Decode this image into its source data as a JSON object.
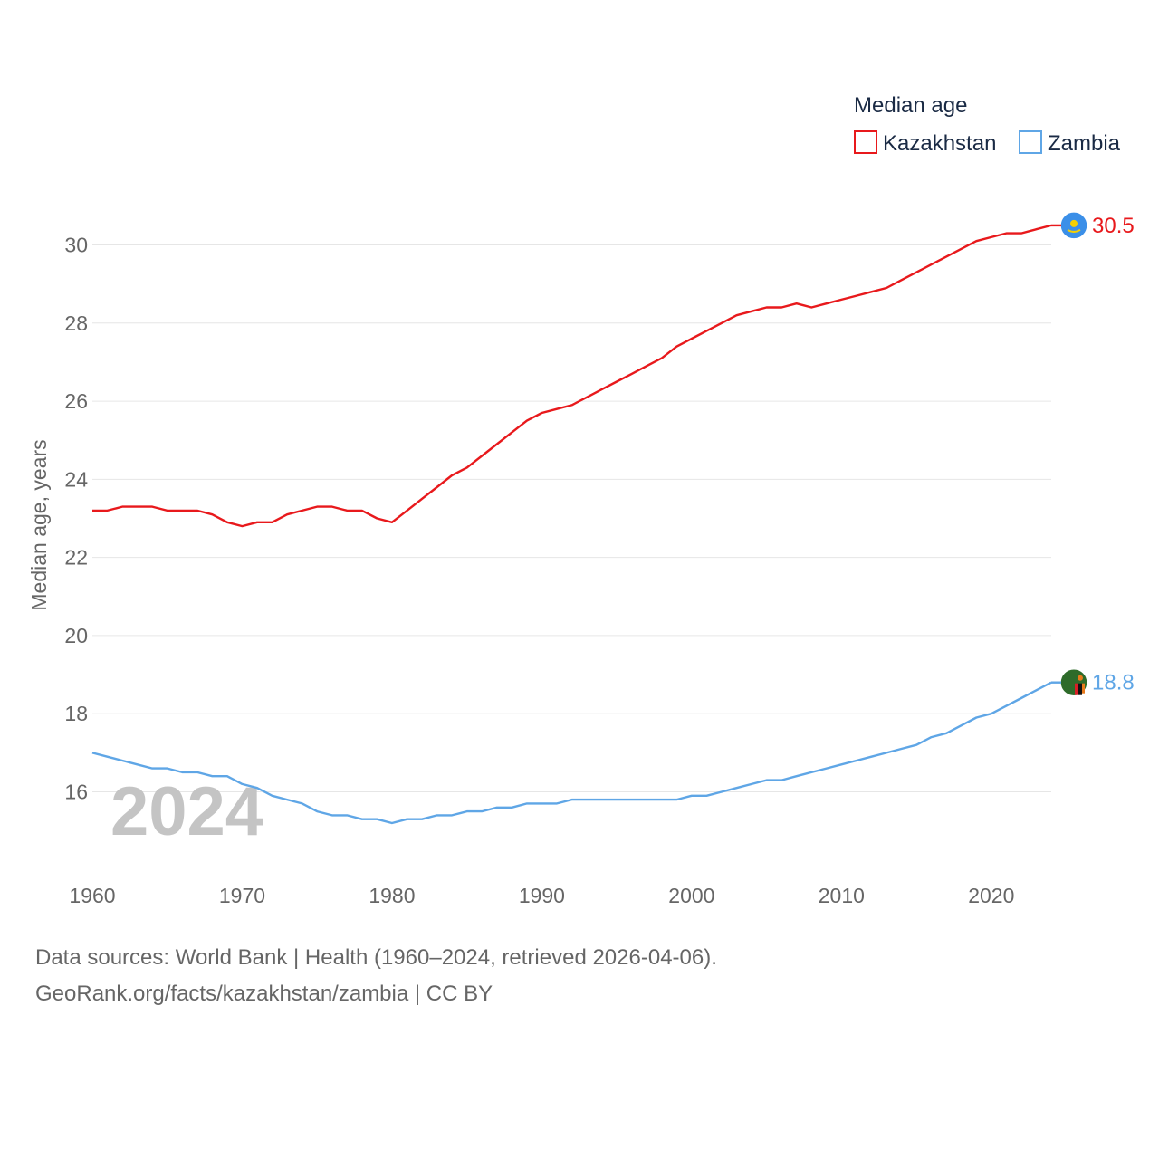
{
  "chart_data": {
    "type": "line",
    "title": "",
    "xlabel": "",
    "ylabel": "Median age, years",
    "xlim": [
      1960,
      2024
    ],
    "ylim": [
      14,
      31.5
    ],
    "yticks": [
      16,
      18,
      20,
      22,
      24,
      26,
      28,
      30
    ],
    "xticks": [
      1960,
      1970,
      1980,
      1990,
      2000,
      2010,
      2020
    ],
    "year_overlay": "2024",
    "legend": {
      "title": "Median age",
      "placement": "top-right"
    },
    "x": [
      1960,
      1961,
      1962,
      1963,
      1964,
      1965,
      1966,
      1967,
      1968,
      1969,
      1970,
      1971,
      1972,
      1973,
      1974,
      1975,
      1976,
      1977,
      1978,
      1979,
      1980,
      1981,
      1982,
      1983,
      1984,
      1985,
      1986,
      1987,
      1988,
      1989,
      1990,
      1991,
      1992,
      1993,
      1994,
      1995,
      1996,
      1997,
      1998,
      1999,
      2000,
      2001,
      2002,
      2003,
      2004,
      2005,
      2006,
      2007,
      2008,
      2009,
      2010,
      2011,
      2012,
      2013,
      2014,
      2015,
      2016,
      2017,
      2018,
      2019,
      2020,
      2021,
      2022,
      2023,
      2024
    ],
    "series": [
      {
        "name": "Kazakhstan",
        "color": "#e8191c",
        "end_label": "30.5",
        "flag_icon": "kazakhstan-flag-icon",
        "values": [
          23.2,
          23.2,
          23.3,
          23.3,
          23.3,
          23.2,
          23.2,
          23.2,
          23.1,
          22.9,
          22.8,
          22.9,
          22.9,
          23.1,
          23.2,
          23.3,
          23.3,
          23.2,
          23.2,
          23.0,
          22.9,
          23.2,
          23.5,
          23.8,
          24.1,
          24.3,
          24.6,
          24.9,
          25.2,
          25.5,
          25.7,
          25.8,
          25.9,
          26.1,
          26.3,
          26.5,
          26.7,
          26.9,
          27.1,
          27.4,
          27.6,
          27.8,
          28.0,
          28.2,
          28.3,
          28.4,
          28.4,
          28.5,
          28.4,
          28.5,
          28.6,
          28.7,
          28.8,
          28.9,
          29.1,
          29.3,
          29.5,
          29.7,
          29.9,
          30.1,
          30.2,
          30.3,
          30.3,
          30.4,
          30.5
        ]
      },
      {
        "name": "Zambia",
        "color": "#5fa6e6",
        "end_label": "18.8",
        "flag_icon": "zambia-flag-icon",
        "values": [
          17.0,
          16.9,
          16.8,
          16.7,
          16.6,
          16.6,
          16.5,
          16.5,
          16.4,
          16.4,
          16.2,
          16.1,
          15.9,
          15.8,
          15.7,
          15.5,
          15.4,
          15.4,
          15.3,
          15.3,
          15.2,
          15.3,
          15.3,
          15.4,
          15.4,
          15.5,
          15.5,
          15.6,
          15.6,
          15.7,
          15.7,
          15.7,
          15.8,
          15.8,
          15.8,
          15.8,
          15.8,
          15.8,
          15.8,
          15.8,
          15.9,
          15.9,
          16.0,
          16.1,
          16.2,
          16.3,
          16.3,
          16.4,
          16.5,
          16.6,
          16.7,
          16.8,
          16.9,
          17.0,
          17.1,
          17.2,
          17.4,
          17.5,
          17.7,
          17.9,
          18.0,
          18.2,
          18.4,
          18.6,
          18.8
        ]
      }
    ]
  },
  "footer": {
    "line1": "Data sources: World Bank | Health (1960–2024, retrieved 2026-04-06).",
    "line2": "GeoRank.org/facts/kazakhstan/zambia | CC BY"
  }
}
